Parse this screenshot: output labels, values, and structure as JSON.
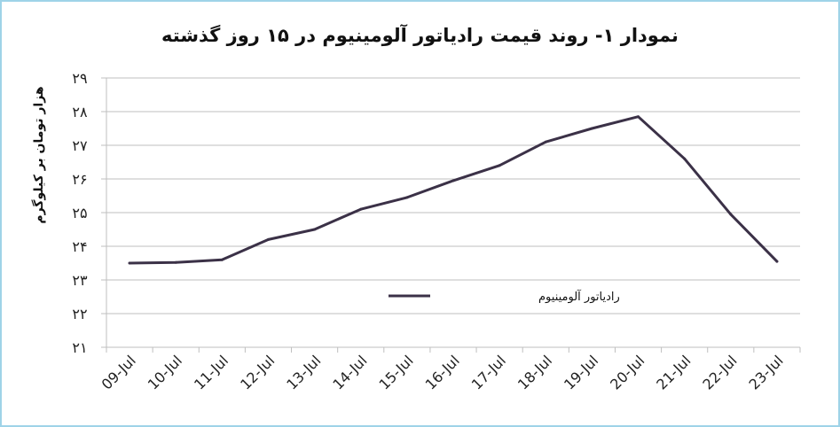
{
  "chart_data": {
    "type": "line",
    "title": "نمودار ۱- روند قیمت رادیاتور آلومینیوم در ۱۵ روز گذشته",
    "ylabel": "هزار تومان بر کیلوگرم",
    "xlabel": "",
    "categories": [
      "09-Jul",
      "10-Jul",
      "11-Jul",
      "12-Jul",
      "13-Jul",
      "14-Jul",
      "15-Jul",
      "16-Jul",
      "17-Jul",
      "18-Jul",
      "19-Jul",
      "20-Jul",
      "21-Jul",
      "22-Jul",
      "23-Jul"
    ],
    "series": [
      {
        "name": "رادیاتور آلومینیوم",
        "values": [
          23.5,
          23.52,
          23.6,
          24.2,
          24.5,
          25.1,
          25.45,
          25.95,
          26.4,
          27.1,
          27.5,
          27.85,
          26.6,
          24.95,
          23.55
        ]
      }
    ],
    "ylim": [
      21,
      29
    ],
    "yticks": [
      "۲۱",
      "۲۲",
      "۲۳",
      "۲۴",
      "۲۵",
      "۲۶",
      "۲۷",
      "۲۸",
      "۲۹"
    ],
    "grid": true,
    "legend": "center",
    "colors": {
      "line": "#3b3147",
      "grid": "#bfbfbf",
      "axis": "#bfbfbf",
      "frame": "#9fd3e8"
    }
  }
}
